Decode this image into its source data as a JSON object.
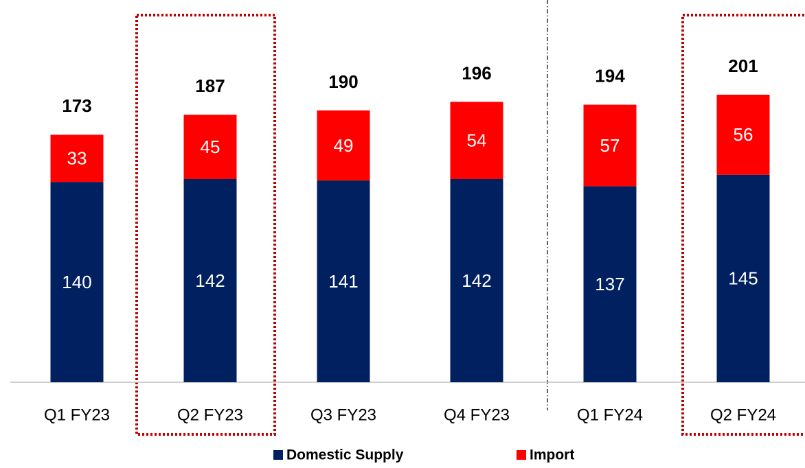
{
  "chart_data": {
    "type": "stacked_bar",
    "categories": [
      "Q1 FY23",
      "Q2 FY23",
      "Q3 FY23",
      "Q4 FY23",
      "Q1 FY24",
      "Q2 FY24"
    ],
    "series": [
      {
        "name": "Domestic Supply",
        "color": "#002060",
        "values": [
          140,
          142,
          141,
          142,
          137,
          145
        ]
      },
      {
        "name": "Import",
        "color": "#ff0000",
        "values": [
          33,
          45,
          49,
          54,
          57,
          56
        ]
      }
    ],
    "totals": [
      173,
      187,
      190,
      196,
      194,
      201
    ],
    "ylim": [
      0,
      260
    ]
  }
}
